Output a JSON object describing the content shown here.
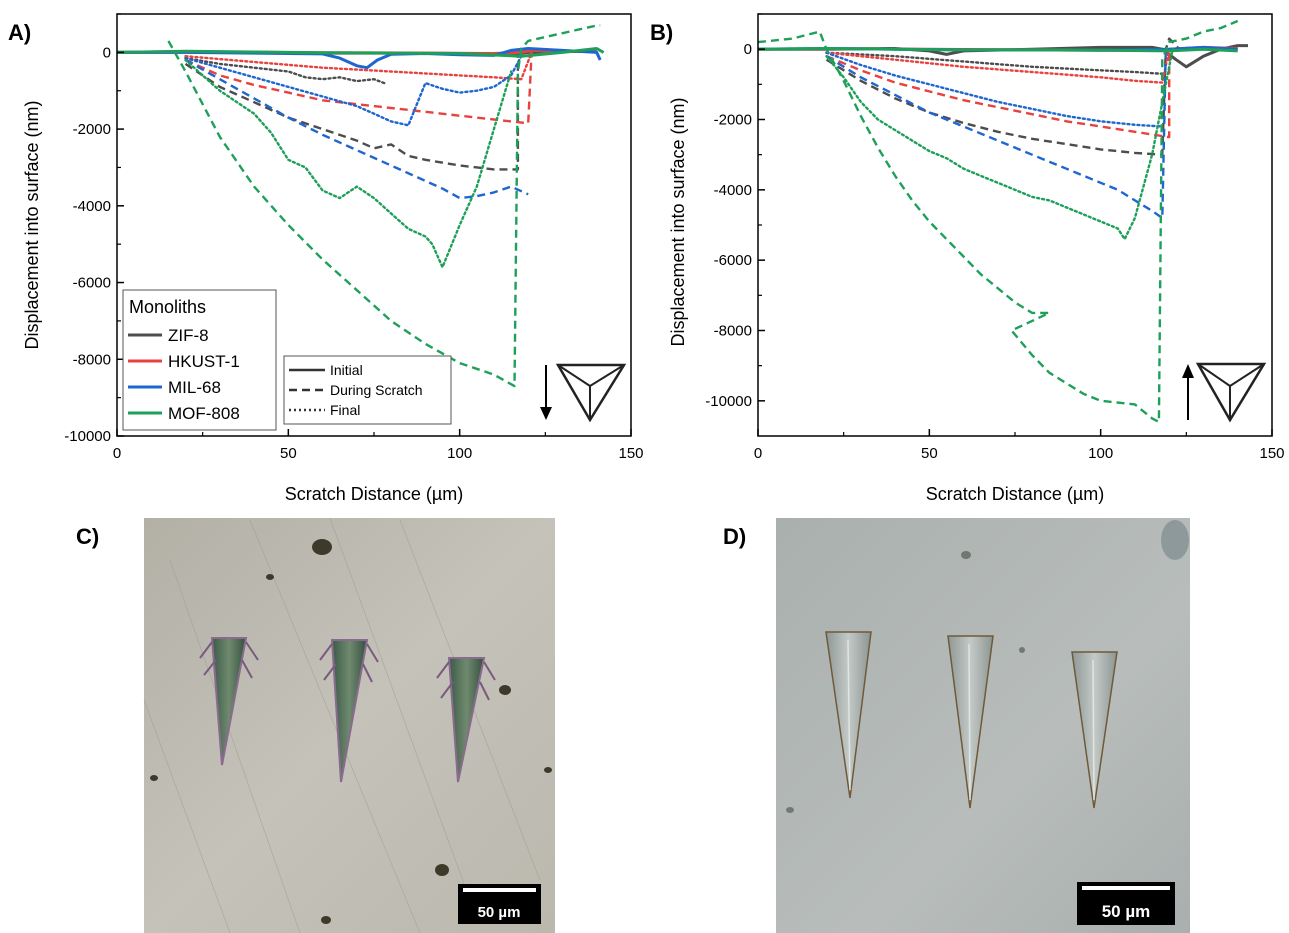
{
  "chart_data": [
    {
      "panel": "A)",
      "type": "line",
      "xlabel": "Scratch Distance (µm)",
      "ylabel": "Displacement into surface (nm)",
      "xlim": [
        0,
        150
      ],
      "ylim": [
        -10000,
        1000
      ],
      "xticks": [
        "0",
        "50",
        "100",
        "150"
      ],
      "yticks": [
        "0",
        "-2000",
        "-4000",
        "-6000",
        "-8000",
        "-10000"
      ],
      "indenter_arrow": "down",
      "legend": {
        "title": "Monoliths",
        "placement": "bottom-left",
        "entries": [
          "ZIF-8",
          "HKUST-1",
          "MIL-68",
          "MOF-808"
        ]
      },
      "style_legend": {
        "placement": "bottom-center",
        "entries": [
          {
            "label": "Initial",
            "style": "solid"
          },
          {
            "label": "During Scratch",
            "style": "dashed"
          },
          {
            "label": "Final",
            "style": "dotted"
          }
        ]
      },
      "series": [
        {
          "material": "ZIF-8",
          "color": "#4d4d4d",
          "style": "solid",
          "x": [
            0,
            20,
            40,
            60,
            80,
            100,
            115,
            120,
            130,
            140
          ],
          "y": [
            0,
            20,
            0,
            -20,
            -20,
            -30,
            -50,
            0,
            20,
            30
          ]
        },
        {
          "material": "ZIF-8",
          "color": "#4d4d4d",
          "style": "dashed",
          "x": [
            20,
            30,
            40,
            50,
            60,
            70,
            75,
            80,
            85,
            90,
            100,
            110,
            117,
            117
          ],
          "y": [
            -300,
            -900,
            -1300,
            -1700,
            -2000,
            -2300,
            -2500,
            -2400,
            -2700,
            -2800,
            -2950,
            -3050,
            -3050,
            0
          ]
        },
        {
          "material": "ZIF-8",
          "color": "#4d4d4d",
          "style": "dotted",
          "x": [
            20,
            30,
            40,
            50,
            55,
            60,
            65,
            70,
            75,
            78
          ],
          "y": [
            -150,
            -300,
            -400,
            -500,
            -650,
            -700,
            -650,
            -750,
            -700,
            -800
          ]
        },
        {
          "material": "HKUST-1",
          "color": "#e8423f",
          "style": "solid",
          "x": [
            0,
            30,
            60,
            90,
            110,
            118,
            121,
            130,
            140
          ],
          "y": [
            0,
            10,
            -10,
            -20,
            -30,
            0,
            50,
            20,
            50
          ]
        },
        {
          "material": "HKUST-1",
          "color": "#e8423f",
          "style": "dashed",
          "x": [
            20,
            30,
            40,
            50,
            60,
            70,
            80,
            90,
            100,
            110,
            120,
            121
          ],
          "y": [
            -200,
            -600,
            -850,
            -1050,
            -1250,
            -1350,
            -1450,
            -1550,
            -1650,
            -1750,
            -1850,
            0
          ]
        },
        {
          "material": "HKUST-1",
          "color": "#e8423f",
          "style": "dotted",
          "x": [
            20,
            40,
            60,
            80,
            100,
            110,
            118,
            121
          ],
          "y": [
            -100,
            -250,
            -400,
            -500,
            -600,
            -650,
            -700,
            0
          ]
        },
        {
          "material": "MIL-68",
          "color": "#1e66d0",
          "style": "solid",
          "x": [
            0,
            20,
            40,
            60,
            65,
            70,
            73,
            76,
            80,
            90,
            100,
            110,
            115,
            120,
            130,
            140,
            141
          ],
          "y": [
            0,
            0,
            -20,
            -40,
            -150,
            -350,
            -400,
            -200,
            -50,
            -30,
            -60,
            -80,
            50,
            100,
            50,
            0,
            -200
          ]
        },
        {
          "material": "MIL-68",
          "color": "#1e66d0",
          "style": "dashed",
          "x": [
            20,
            30,
            40,
            50,
            60,
            70,
            80,
            90,
            95,
            100,
            105,
            110,
            115,
            120
          ],
          "y": [
            -200,
            -700,
            -1200,
            -1700,
            -2150,
            -2550,
            -2950,
            -3350,
            -3550,
            -3800,
            -3750,
            -3650,
            -3500,
            -3700
          ]
        },
        {
          "material": "MIL-68",
          "color": "#1e66d0",
          "style": "dotted",
          "x": [
            20,
            30,
            40,
            50,
            60,
            70,
            75,
            80,
            85,
            90,
            95,
            100,
            105,
            110,
            115,
            118
          ],
          "y": [
            -150,
            -400,
            -650,
            -900,
            -1150,
            -1400,
            -1600,
            -1800,
            -1900,
            -800,
            -950,
            -1050,
            -1000,
            -900,
            -600,
            -100
          ]
        },
        {
          "material": "MOF-808",
          "color": "#1fa05a",
          "style": "solid",
          "x": [
            0,
            20,
            40,
            60,
            80,
            100,
            118,
            130,
            140,
            142
          ],
          "y": [
            0,
            30,
            10,
            -10,
            -20,
            -30,
            -100,
            0,
            100,
            0
          ]
        },
        {
          "material": "MOF-808",
          "color": "#1fa05a",
          "style": "dashed",
          "x": [
            15,
            20,
            30,
            40,
            50,
            60,
            70,
            80,
            90,
            100,
            110,
            116,
            117,
            118,
            120,
            125,
            130,
            135,
            140,
            141
          ],
          "y": [
            300,
            -500,
            -2200,
            -3500,
            -4500,
            -5400,
            -6200,
            -7000,
            -7600,
            -8100,
            -8400,
            -8700,
            -500,
            100,
            300,
            400,
            500,
            600,
            700,
            700
          ]
        },
        {
          "material": "MOF-808",
          "color": "#1fa05a",
          "style": "dotted",
          "x": [
            20,
            30,
            40,
            45,
            50,
            55,
            60,
            65,
            70,
            75,
            80,
            85,
            90,
            92,
            95,
            100,
            105,
            110,
            115
          ],
          "y": [
            -200,
            -1000,
            -1600,
            -2100,
            -2800,
            -3000,
            -3600,
            -3800,
            -3500,
            -3800,
            -4200,
            -4600,
            -4800,
            -5000,
            -5600,
            -4500,
            -3500,
            -2000,
            -500
          ]
        }
      ]
    },
    {
      "panel": "B)",
      "type": "line",
      "xlabel": "Scratch Distance (µm)",
      "ylabel": "Displacement into surface (nm)",
      "xlim": [
        0,
        150
      ],
      "ylim": [
        -11000,
        1000
      ],
      "xticks": [
        "0",
        "50",
        "100",
        "150"
      ],
      "yticks": [
        "0",
        "-2000",
        "-4000",
        "-6000",
        "-8000",
        "-10000"
      ],
      "indenter_arrow": "up",
      "series": [
        {
          "material": "ZIF-8",
          "color": "#4d4d4d",
          "style": "solid",
          "x": [
            0,
            20,
            40,
            50,
            55,
            60,
            80,
            100,
            115,
            118,
            122,
            125,
            130,
            135,
            140,
            143
          ],
          "y": [
            0,
            0,
            20,
            -50,
            -150,
            -50,
            0,
            50,
            50,
            0,
            -300,
            -500,
            -200,
            0,
            100,
            100
          ]
        },
        {
          "material": "ZIF-8",
          "color": "#4d4d4d",
          "style": "dashed",
          "x": [
            20,
            30,
            40,
            50,
            60,
            70,
            80,
            90,
            100,
            110,
            118,
            119,
            120,
            123
          ],
          "y": [
            -300,
            -900,
            -1400,
            -1800,
            -2100,
            -2350,
            -2550,
            -2700,
            -2850,
            -2950,
            -3000,
            0,
            300,
            0
          ]
        },
        {
          "material": "ZIF-8",
          "color": "#4d4d4d",
          "style": "dotted",
          "x": [
            20,
            40,
            60,
            80,
            100,
            110,
            118
          ],
          "y": [
            -100,
            -200,
            -350,
            -500,
            -600,
            -650,
            -700
          ]
        },
        {
          "material": "HKUST-1",
          "color": "#e8423f",
          "style": "solid",
          "x": [
            0,
            30,
            60,
            90,
            110,
            120,
            130,
            140
          ],
          "y": [
            0,
            10,
            -10,
            -20,
            -30,
            0,
            50,
            20
          ]
        },
        {
          "material": "HKUST-1",
          "color": "#e8423f",
          "style": "dashed",
          "x": [
            20,
            30,
            40,
            50,
            60,
            70,
            80,
            90,
            100,
            110,
            120,
            120
          ],
          "y": [
            -200,
            -600,
            -950,
            -1200,
            -1450,
            -1650,
            -1850,
            -2050,
            -2200,
            -2350,
            -2500,
            0
          ]
        },
        {
          "material": "HKUST-1",
          "color": "#e8423f",
          "style": "dotted",
          "x": [
            20,
            40,
            60,
            80,
            100,
            110,
            118,
            120
          ],
          "y": [
            -100,
            -300,
            -500,
            -650,
            -800,
            -900,
            -950,
            0
          ]
        },
        {
          "material": "MIL-68",
          "color": "#1e66d0",
          "style": "solid",
          "x": [
            0,
            20,
            40,
            60,
            80,
            100,
            120,
            130,
            140
          ],
          "y": [
            0,
            20,
            0,
            -20,
            -20,
            -30,
            0,
            50,
            0
          ]
        },
        {
          "material": "MIL-68",
          "color": "#1e66d0",
          "style": "dashed",
          "x": [
            20,
            30,
            40,
            50,
            60,
            70,
            80,
            90,
            100,
            105,
            110,
            115,
            118,
            119
          ],
          "y": [
            -200,
            -800,
            -1300,
            -1800,
            -2200,
            -2600,
            -3000,
            -3400,
            -3800,
            -4000,
            -4300,
            -4600,
            -4800,
            0
          ]
        },
        {
          "material": "MIL-68",
          "color": "#1e66d0",
          "style": "dotted",
          "x": [
            20,
            30,
            40,
            50,
            60,
            70,
            80,
            90,
            100,
            110,
            118
          ],
          "y": [
            -100,
            -450,
            -750,
            -1000,
            -1250,
            -1500,
            -1700,
            -1900,
            -2050,
            -2150,
            -2200
          ]
        },
        {
          "material": "MOF-808",
          "color": "#1fa05a",
          "style": "solid",
          "x": [
            0,
            20,
            40,
            60,
            80,
            100,
            120,
            130,
            140
          ],
          "y": [
            0,
            20,
            0,
            -20,
            -20,
            -30,
            -50,
            0,
            -50
          ]
        },
        {
          "material": "MOF-808",
          "color": "#1fa05a",
          "style": "dashed",
          "x": [
            0,
            10,
            18,
            20,
            25,
            30,
            35,
            40,
            45,
            50,
            55,
            60,
            65,
            70,
            75,
            80,
            85,
            74,
            80,
            85,
            90,
            95,
            100,
            105,
            110,
            115,
            117,
            118,
            120,
            125,
            130,
            135,
            140
          ],
          "y": [
            200,
            300,
            500,
            0,
            -900,
            -1900,
            -2800,
            -3600,
            -4300,
            -4900,
            -5400,
            -5900,
            -6400,
            -6800,
            -7200,
            -7500,
            -7500,
            -8000,
            -8700,
            -9200,
            -9500,
            -9800,
            -10000,
            -10050,
            -10100,
            -10500,
            -10600,
            -300,
            200,
            300,
            500,
            600,
            800
          ]
        },
        {
          "material": "MOF-808",
          "color": "#1fa05a",
          "style": "dotted",
          "x": [
            20,
            25,
            30,
            33,
            35,
            40,
            45,
            50,
            55,
            60,
            65,
            70,
            75,
            80,
            85,
            90,
            95,
            100,
            105,
            107,
            110,
            115,
            120,
            121
          ],
          "y": [
            -200,
            -800,
            -1500,
            -1800,
            -2000,
            -2300,
            -2600,
            -2900,
            -3100,
            -3400,
            -3600,
            -3800,
            -4000,
            -4200,
            -4300,
            -4500,
            -4700,
            -4900,
            -5100,
            -5400,
            -4800,
            -3000,
            -500,
            0
          ]
        }
      ]
    }
  ],
  "images": [
    {
      "panel": "C)",
      "scale_bar": "50 µm",
      "scratch_count": 3,
      "appearance": "pronged"
    },
    {
      "panel": "D)",
      "scale_bar": "50 µm",
      "scratch_count": 3,
      "appearance": "smooth"
    }
  ]
}
